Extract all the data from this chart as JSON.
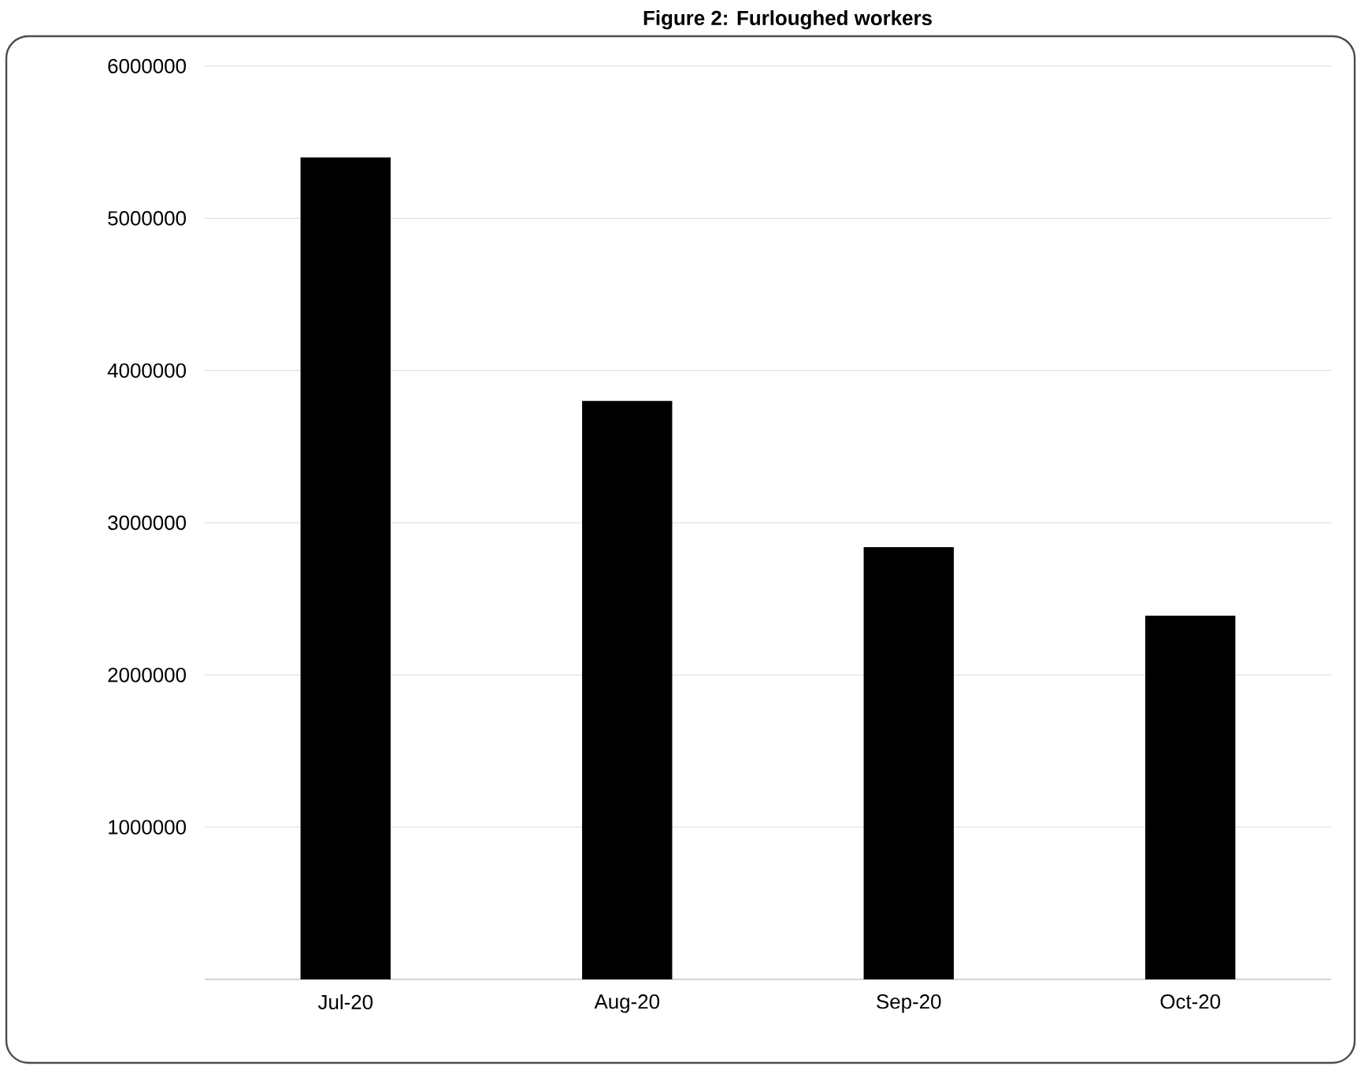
{
  "chart_data": {
    "type": "bar",
    "title": "Figure 2: Furloughed workers",
    "categories": [
      "Jul-20",
      "Aug-20",
      "Sep-20",
      "Oct-20"
    ],
    "values": [
      5400000,
      3800000,
      2840000,
      2390000
    ],
    "color": "#000000",
    "ylim": [
      0,
      6000000
    ],
    "yticks": [
      {
        "value": 0,
        "label": null
      },
      1000000,
      2000000,
      3000000,
      4000000,
      5000000,
      6000000
    ],
    "grid": "y"
  }
}
